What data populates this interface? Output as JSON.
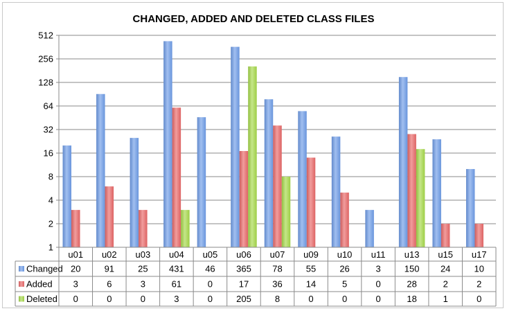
{
  "chart_data": {
    "type": "bar",
    "title": "CHANGED, ADDED AND DELETED CLASS FILES",
    "xlabel": "",
    "ylabel": "",
    "y_scale": "log2",
    "ylim": [
      1,
      512
    ],
    "y_ticks": [
      "1",
      "2",
      "4",
      "8",
      "16",
      "32",
      "64",
      "128",
      "256",
      "512"
    ],
    "y_tick_values": [
      1,
      2,
      4,
      8,
      16,
      32,
      64,
      128,
      256,
      512
    ],
    "grid": true,
    "legend_placement": "data-table",
    "categories": [
      "u01",
      "u02",
      "u03",
      "u04",
      "u05",
      "u06",
      "u07",
      "u09",
      "u10",
      "u11",
      "u13",
      "u15",
      "u17"
    ],
    "series": [
      {
        "name": "Changed",
        "color": "#6f9de8",
        "values": [
          20,
          91,
          25,
          431,
          46,
          365,
          78,
          55,
          26,
          3,
          150,
          24,
          10
        ]
      },
      {
        "name": "Added",
        "color": "#e96868",
        "values": [
          3,
          6,
          3,
          61,
          0,
          17,
          36,
          14,
          5,
          0,
          28,
          2,
          2
        ]
      },
      {
        "name": "Deleted",
        "color": "#a6d94a",
        "values": [
          0,
          0,
          0,
          3,
          0,
          205,
          8,
          0,
          0,
          0,
          18,
          1,
          0
        ]
      }
    ],
    "table_values": {
      "Changed": [
        "20",
        "91",
        "25",
        "431",
        "46",
        "365",
        "78",
        "55",
        "26",
        "3",
        "150",
        "24",
        "10"
      ],
      "Added": [
        "3",
        "6",
        "3",
        "61",
        "0",
        "17",
        "36",
        "14",
        "5",
        "0",
        "28",
        "2",
        "2"
      ],
      "Deleted": [
        "0",
        "0",
        "0",
        "3",
        "0",
        "205",
        "8",
        "0",
        "0",
        "0",
        "18",
        "1",
        "0"
      ]
    }
  }
}
